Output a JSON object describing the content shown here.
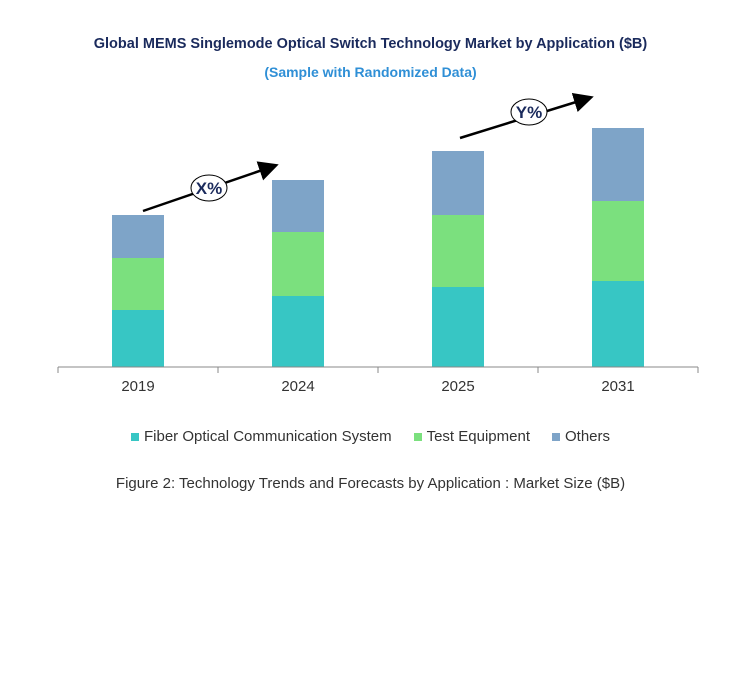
{
  "chart_data": {
    "type": "bar",
    "stacked": true,
    "title": "Global MEMS Singlemode Optical Switch Technology Market by Application ($B)",
    "subtitle": "(Sample with Randomized Data)",
    "categories": [
      "2019",
      "2024",
      "2025",
      "2031"
    ],
    "series": [
      {
        "name": "Fiber Optical Communication System",
        "color": "#37c6c4",
        "values": [
          57,
          71,
          80,
          86
        ]
      },
      {
        "name": "Test Equipment",
        "color": "#7be07e",
        "values": [
          52,
          64,
          72,
          80
        ]
      },
      {
        "name": "Others",
        "color": "#7ea4c8",
        "values": [
          43,
          52,
          64,
          73
        ]
      }
    ],
    "ylim": [
      0,
      250
    ],
    "y_axis_visible": false,
    "grid": false,
    "legend": "bottom",
    "annotations": [
      {
        "label": "X%",
        "from": "2019",
        "to": "2024"
      },
      {
        "label": "Y%",
        "from": "2025",
        "to": "2031"
      }
    ],
    "caption": "Figure 2: Technology  Trends  and Forecasts by Application : Market Size ($B)"
  }
}
